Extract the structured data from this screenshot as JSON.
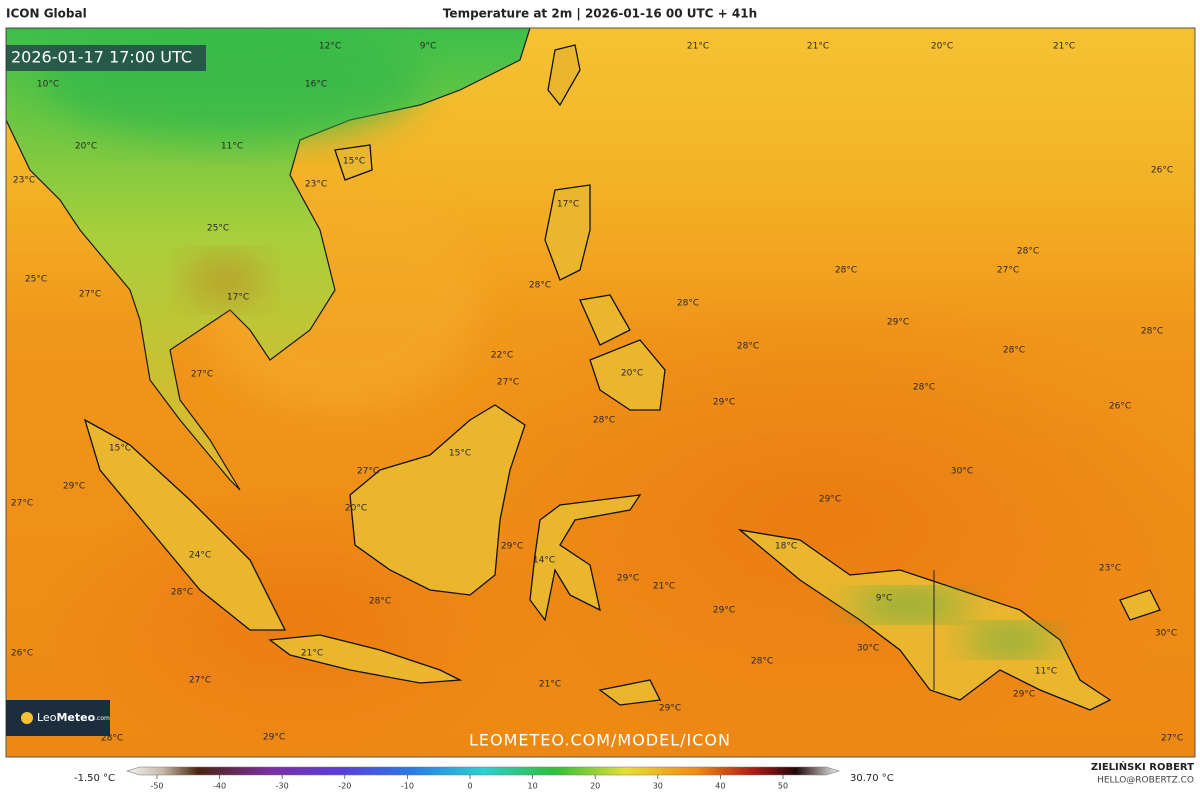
{
  "header": {
    "model": "ICON Global",
    "title": "Temperature at 2m | 2026-01-16 00 UTC + 41h"
  },
  "valid_time": "2026-01-17 17:00 UTC",
  "map": {
    "labels": [
      "12°C",
      "9°C",
      "21°C",
      "21°C",
      "20°C",
      "21°C",
      "10°C",
      "16°C",
      "20°C",
      "11°C",
      "15°C",
      "23°C",
      "23°C",
      "26°C",
      "17°C",
      "25°C",
      "28°C",
      "27°C",
      "28°C",
      "25°C",
      "28°C",
      "27°C",
      "17°C",
      "28°C",
      "29°C",
      "28°C",
      "28°C",
      "28°C",
      "22°C",
      "27°C",
      "20°C",
      "27°C",
      "28°C",
      "29°C",
      "26°C",
      "28°C",
      "15°C",
      "15°C",
      "27°C",
      "30°C",
      "29°C",
      "29°C",
      "27°C",
      "20°C",
      "29°C",
      "18°C",
      "14°C",
      "24°C",
      "23°C",
      "29°C",
      "21°C",
      "28°C",
      "28°C",
      "29°C",
      "9°C",
      "30°C",
      "26°C",
      "21°C",
      "30°C",
      "28°C",
      "11°C",
      "27°C",
      "21°C",
      "29°C",
      "29°C",
      "28°C",
      "29°C",
      "27°C"
    ]
  },
  "watermark": "LEOMETEO.COM/MODEL/ICON",
  "logo": {
    "leo": "Leo",
    "meteo": "Meteo",
    "com": ".com"
  },
  "author": {
    "name": "ZIELIŃSKI ROBERT",
    "contact": "HELLO@ROBERTZ.CO"
  },
  "legend": {
    "min_label": "-1.50 °C",
    "max_label": "30.70 °C",
    "ticks": [
      -50,
      -40,
      -30,
      -20,
      -10,
      0,
      10,
      20,
      30,
      40,
      50
    ]
  }
}
